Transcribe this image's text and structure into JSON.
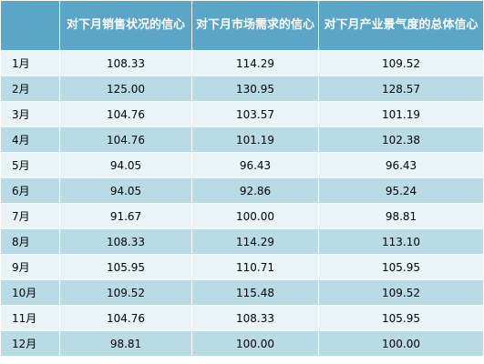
{
  "table": {
    "headers": [
      "",
      "对下月销售状况的信心",
      "对下月市场需求的信心",
      "对下月产业景气度的总体信心"
    ],
    "rows": [
      {
        "month": "1月",
        "sales": "108.33",
        "demand": "114.29",
        "overall": "109.52"
      },
      {
        "month": "2月",
        "sales": "125.00",
        "demand": "130.95",
        "overall": "128.57"
      },
      {
        "month": "3月",
        "sales": "104.76",
        "demand": "103.57",
        "overall": "101.19"
      },
      {
        "month": "4月",
        "sales": "104.76",
        "demand": "101.19",
        "overall": "102.38"
      },
      {
        "month": "5月",
        "sales": "94.05",
        "demand": "96.43",
        "overall": "96.43"
      },
      {
        "month": "6月",
        "sales": "94.05",
        "demand": "92.86",
        "overall": "95.24"
      },
      {
        "month": "7月",
        "sales": "91.67",
        "demand": "100.00",
        "overall": "98.81"
      },
      {
        "month": "8月",
        "sales": "108.33",
        "demand": "114.29",
        "overall": "113.10"
      },
      {
        "month": "9月",
        "sales": "105.95",
        "demand": "110.71",
        "overall": "105.95"
      },
      {
        "month": "10月",
        "sales": "109.52",
        "demand": "115.48",
        "overall": "109.52"
      },
      {
        "month": "11月",
        "sales": "104.76",
        "demand": "108.33",
        "overall": "105.95"
      },
      {
        "month": "12月",
        "sales": "98.81",
        "demand": "100.00",
        "overall": "100.00"
      }
    ]
  },
  "colors": {
    "header_bg": "#5aa5c8",
    "row_light": "#eaf4f8",
    "row_dark": "#b9dbe6"
  }
}
